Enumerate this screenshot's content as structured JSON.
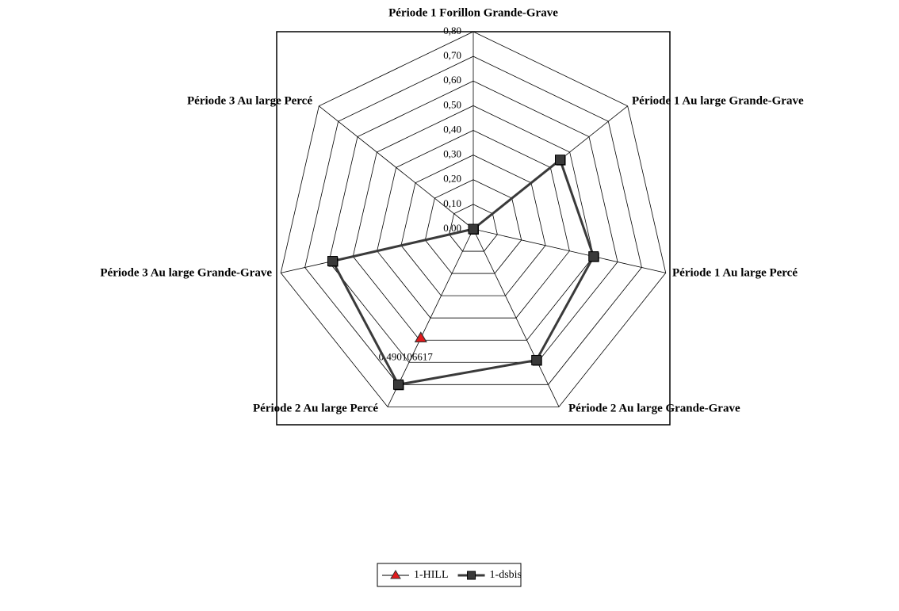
{
  "chart_data": {
    "type": "radar",
    "categories": [
      "Période 1 Forillon Grande-Grave",
      "Période 1 Au large Grande-Grave",
      "Période 1 Au large Percé",
      "Période 2 Au large Grande-Grave",
      "Période 2 Au large Percé",
      "Période 3 Au large Grande-Grave",
      "Période 3 Au large Percé"
    ],
    "series": [
      {
        "name": "1-HILL",
        "color": "#e31a1c",
        "values": [
          null,
          null,
          null,
          null,
          0.490106617,
          null,
          null
        ],
        "value_labels": [
          null,
          null,
          null,
          null,
          "0,490106617",
          null,
          null
        ]
      },
      {
        "name": "1-dsbis",
        "color": "#3a3a3a",
        "values": [
          0,
          0.45,
          0.5,
          0.59,
          0.7,
          0.585,
          0
        ]
      }
    ],
    "ylim": [
      0,
      0.8
    ],
    "yticks": [
      {
        "value": 0,
        "label": "0,00"
      },
      {
        "value": 0.1,
        "label": "0,10"
      },
      {
        "value": 0.2,
        "label": "0,20"
      },
      {
        "value": 0.3,
        "label": "0,30"
      },
      {
        "value": 0.4,
        "label": "0,40"
      },
      {
        "value": 0.5,
        "label": "0,50"
      },
      {
        "value": 0.6,
        "label": "0,60"
      },
      {
        "value": 0.7,
        "label": "0,70"
      },
      {
        "value": 0.8,
        "label": "0,80"
      }
    ],
    "grid": true,
    "legend": "bottom"
  }
}
